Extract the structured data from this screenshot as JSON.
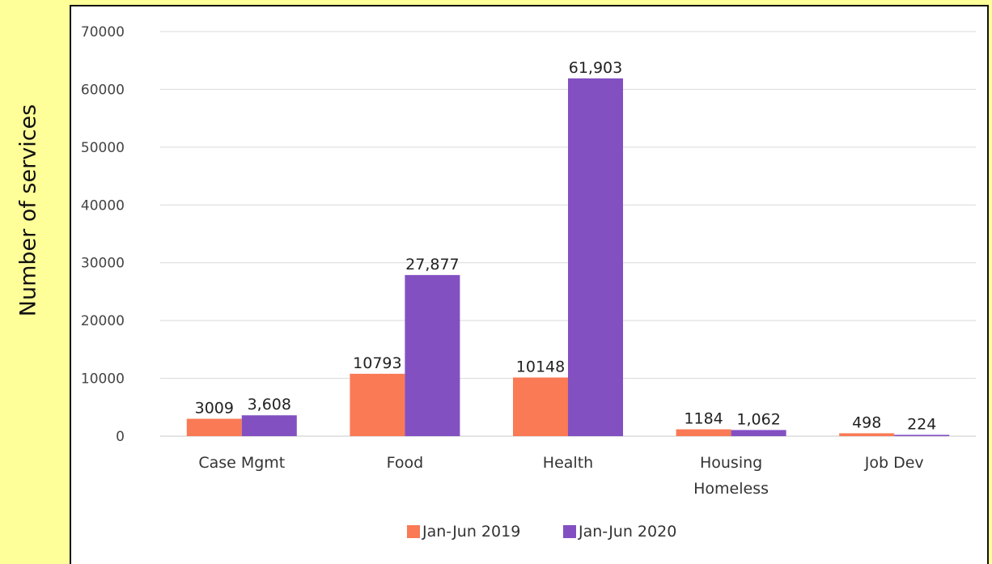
{
  "chart_data": {
    "type": "bar",
    "ylabel": "Number of services",
    "categories": [
      "Case Mgmt",
      "Food",
      "Health",
      "Housing Homeless",
      "Job Dev"
    ],
    "category_lines": [
      [
        "Case Mgmt"
      ],
      [
        "Food"
      ],
      [
        "Health"
      ],
      [
        "Housing",
        "Homeless"
      ],
      [
        "Job Dev"
      ]
    ],
    "series": [
      {
        "name": "Jan-Jun 2019",
        "color": "#f97a55",
        "values": [
          3009,
          10793,
          10148,
          1184,
          498
        ],
        "labels": [
          "3009",
          "10793",
          "10148",
          "1184",
          "498"
        ]
      },
      {
        "name": "Jan-Jun 2020",
        "color": "#8350c2",
        "values": [
          3608,
          27877,
          61903,
          1062,
          224
        ],
        "labels": [
          "3,608",
          "27,877",
          "61,903",
          "1,062",
          "224"
        ]
      }
    ],
    "ylim": [
      0,
      70000
    ],
    "yticks": [
      0,
      10000,
      20000,
      30000,
      40000,
      50000,
      60000,
      70000
    ],
    "ytick_labels": [
      "0",
      "10000",
      "20000",
      "30000",
      "40000",
      "50000",
      "60000",
      "70000"
    ],
    "grid": true,
    "legend": "bottom",
    "colors": {
      "background": "#ffff99",
      "panel": "#ffffff",
      "grid": "#d9d9d9"
    }
  }
}
